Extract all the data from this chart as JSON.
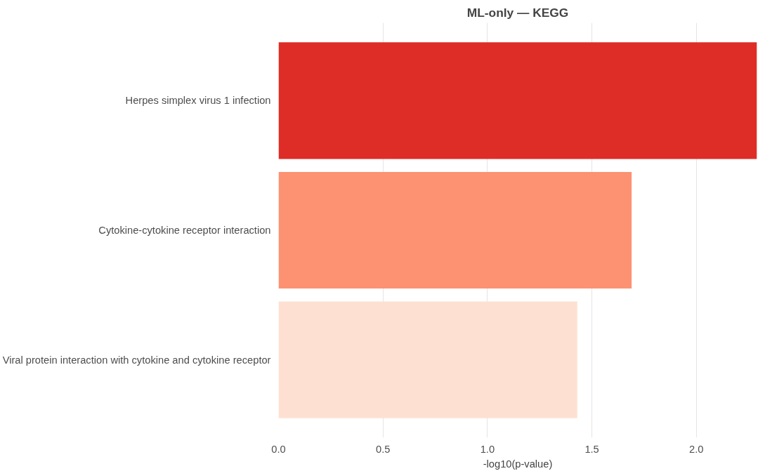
{
  "chart_data": {
    "type": "bar",
    "orientation": "horizontal",
    "title": "ML-only — KEGG",
    "xlabel": "-log10(p-value)",
    "categories": [
      "Herpes simplex virus 1 infection",
      "Cytokine-cytokine receptor interaction",
      "Viral protein interaction with cytokine and cytokine receptor"
    ],
    "values": [
      2.29,
      1.69,
      1.43
    ],
    "colors": [
      "#de2d26",
      "#fc9272",
      "#fee0d2"
    ],
    "xlim": [
      0,
      2.29
    ],
    "xticks": [
      {
        "value": 0,
        "label": "0.0"
      },
      0.5,
      {
        "value": 1,
        "label": "1.0"
      },
      1.5,
      {
        "value": 2,
        "label": "2.0"
      }
    ],
    "grid": "x"
  }
}
